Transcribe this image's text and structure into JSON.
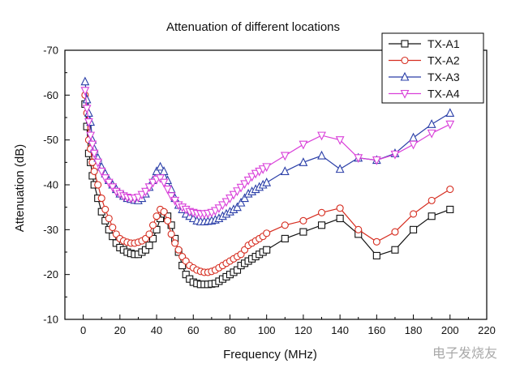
{
  "chart_data": {
    "type": "line",
    "title": "Attenuation of different locations",
    "xlabel": "Frequency (MHz)",
    "ylabel": "Attenuation (dB)",
    "xlim": [
      -10,
      220
    ],
    "ylim": [
      -10,
      -70
    ],
    "xticks": [
      0,
      20,
      40,
      60,
      80,
      100,
      120,
      140,
      160,
      180,
      200,
      220
    ],
    "yticks": [
      -10,
      -20,
      -30,
      -40,
      -50,
      -60,
      -70
    ],
    "legend_position": "top-right",
    "series": [
      {
        "name": "TX-A1",
        "color": "#111111",
        "marker": "square",
        "x": [
          1,
          2,
          3,
          4,
          5,
          6,
          8,
          10,
          12,
          14,
          16,
          18,
          20,
          22,
          24,
          26,
          28,
          30,
          32,
          34,
          36,
          38,
          40,
          42,
          44,
          46,
          48,
          50,
          52,
          54,
          56,
          58,
          60,
          62,
          64,
          66,
          68,
          70,
          72,
          74,
          76,
          78,
          80,
          82,
          84,
          86,
          88,
          90,
          92,
          94,
          96,
          98,
          100,
          110,
          120,
          130,
          140,
          150,
          160,
          170,
          180,
          190,
          200
        ],
        "y": [
          -58,
          -53,
          -47,
          -45,
          -42,
          -40,
          -37,
          -34,
          -32,
          -30,
          -28.5,
          -27,
          -26,
          -25.5,
          -25,
          -24.7,
          -24.5,
          -24.5,
          -25,
          -25.5,
          -26.5,
          -28,
          -30,
          -32.5,
          -33.5,
          -33,
          -31,
          -28,
          -25,
          -22,
          -20,
          -19,
          -18.3,
          -18,
          -17.8,
          -17.8,
          -17.8,
          -17.9,
          -18,
          -18.5,
          -19,
          -19.5,
          -20,
          -20.5,
          -21,
          -22,
          -22.5,
          -23,
          -23.5,
          -24,
          -24.5,
          -25,
          -25.5,
          -28,
          -29.5,
          -31,
          -32.5,
          -29,
          -24.2,
          -25.5,
          -30,
          -33,
          -34.5
        ]
      },
      {
        "name": "TX-A2",
        "color": "#d62d20",
        "marker": "circle",
        "x": [
          1,
          2,
          3,
          4,
          5,
          6,
          8,
          10,
          12,
          14,
          16,
          18,
          20,
          22,
          24,
          26,
          28,
          30,
          32,
          34,
          36,
          38,
          40,
          42,
          44,
          46,
          48,
          50,
          52,
          54,
          56,
          58,
          60,
          62,
          64,
          66,
          68,
          70,
          72,
          74,
          76,
          78,
          80,
          82,
          84,
          86,
          88,
          90,
          92,
          94,
          96,
          98,
          100,
          110,
          120,
          130,
          140,
          150,
          160,
          170,
          180,
          190,
          200
        ],
        "y": [
          -60,
          -56,
          -50,
          -48,
          -45,
          -43,
          -40,
          -37,
          -34.5,
          -32.5,
          -30.5,
          -29,
          -28,
          -27.5,
          -27.2,
          -27,
          -27,
          -27.2,
          -27.5,
          -28,
          -29,
          -31,
          -33,
          -34.5,
          -34,
          -32,
          -29,
          -27,
          -25.5,
          -24,
          -23,
          -22,
          -21.5,
          -21,
          -20.7,
          -20.5,
          -20.5,
          -20.7,
          -21,
          -21.5,
          -22,
          -22.5,
          -23,
          -23.5,
          -24,
          -24.5,
          -25.5,
          -26.5,
          -27,
          -27.5,
          -28,
          -28.5,
          -29.2,
          -31,
          -32,
          -33.8,
          -34.8,
          -30,
          -27.3,
          -29.5,
          -33.5,
          -36.5,
          -39
        ]
      },
      {
        "name": "TX-A3",
        "color": "#2b3fa8",
        "marker": "triangle-up",
        "x": [
          1,
          2,
          3,
          4,
          5,
          6,
          8,
          10,
          12,
          14,
          16,
          18,
          20,
          22,
          24,
          26,
          28,
          30,
          32,
          34,
          36,
          38,
          40,
          42,
          44,
          46,
          48,
          50,
          52,
          54,
          56,
          58,
          60,
          62,
          64,
          66,
          68,
          70,
          72,
          74,
          76,
          78,
          80,
          82,
          84,
          86,
          88,
          90,
          92,
          94,
          96,
          98,
          100,
          110,
          120,
          130,
          140,
          150,
          160,
          170,
          180,
          190,
          200
        ],
        "y": [
          -63,
          -59,
          -56,
          -54,
          -50,
          -48,
          -46,
          -44,
          -42.5,
          -41,
          -40,
          -39,
          -38,
          -37.5,
          -37,
          -36.8,
          -36.6,
          -36.5,
          -37,
          -38,
          -39.5,
          -41,
          -43,
          -44,
          -43,
          -41,
          -39,
          -37,
          -35.5,
          -34.5,
          -33.5,
          -33,
          -32.5,
          -32,
          -31.8,
          -31.8,
          -31.9,
          -32,
          -32.2,
          -32.5,
          -33,
          -33.5,
          -34,
          -34.5,
          -35,
          -36,
          -37,
          -38,
          -38.5,
          -39,
          -39.5,
          -40,
          -40.5,
          -43,
          -45,
          -46.5,
          -43.5,
          -46,
          -45.5,
          -47,
          -50.5,
          -53.5,
          -56
        ]
      },
      {
        "name": "TX-A4",
        "color": "#d940d9",
        "marker": "triangle-down",
        "x": [
          1,
          2,
          3,
          4,
          5,
          6,
          8,
          10,
          12,
          14,
          16,
          18,
          20,
          22,
          24,
          26,
          28,
          30,
          32,
          34,
          36,
          38,
          40,
          42,
          44,
          46,
          48,
          50,
          52,
          54,
          56,
          58,
          60,
          62,
          64,
          66,
          68,
          70,
          72,
          74,
          76,
          78,
          80,
          82,
          84,
          86,
          88,
          90,
          92,
          94,
          96,
          98,
          100,
          110,
          120,
          130,
          140,
          150,
          160,
          170,
          180,
          190,
          200
        ],
        "y": [
          -61,
          -57,
          -54,
          -51,
          -49,
          -47,
          -45,
          -43,
          -41.5,
          -40.5,
          -39.5,
          -38.5,
          -38,
          -37.5,
          -37.2,
          -37,
          -37,
          -37.2,
          -37.8,
          -38.5,
          -39.5,
          -40.5,
          -41.2,
          -41.5,
          -40.5,
          -39,
          -37.5,
          -36.5,
          -35.5,
          -35,
          -34.5,
          -34,
          -33.8,
          -33.6,
          -33.5,
          -33.5,
          -33.6,
          -33.8,
          -34.2,
          -34.8,
          -35.5,
          -36.2,
          -37,
          -37.8,
          -38.6,
          -39.4,
          -40.2,
          -41,
          -41.8,
          -42.5,
          -43,
          -43.5,
          -44,
          -46.5,
          -49,
          -51,
          -50,
          -46,
          -45.5,
          -46.8,
          -49,
          -51.5,
          -53.5
        ]
      }
    ]
  },
  "watermark": "电子发烧友"
}
